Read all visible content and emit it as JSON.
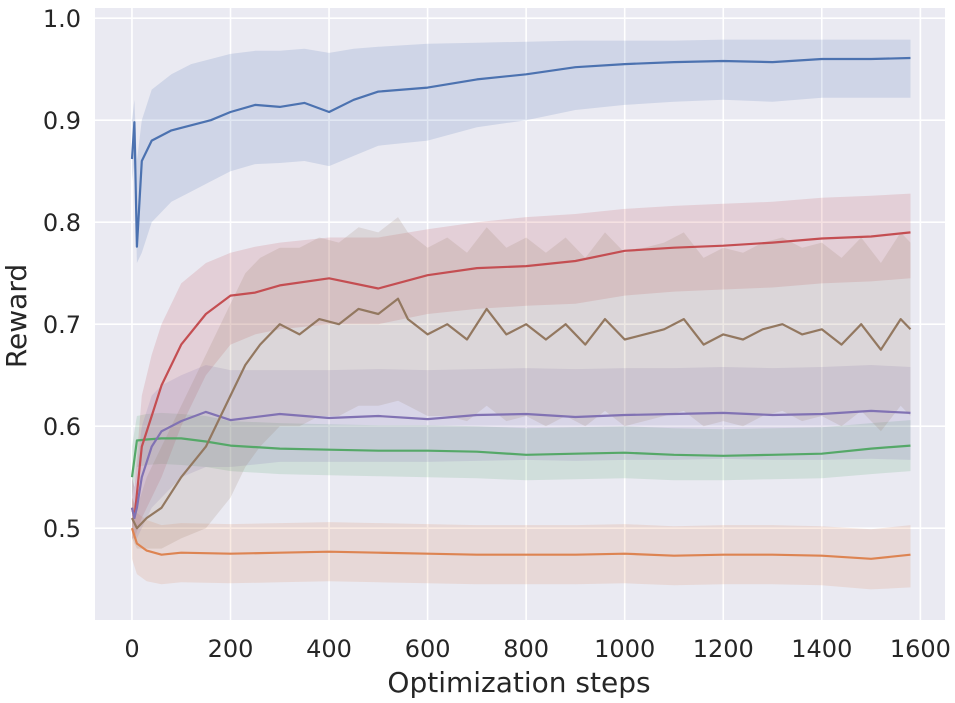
{
  "chart_data": {
    "type": "line",
    "title": "",
    "xlabel": "Optimization steps",
    "ylabel": "Reward",
    "xlim": [
      -75,
      1650
    ],
    "ylim": [
      0.41,
      1.01
    ],
    "xticks": [
      0,
      200,
      400,
      600,
      800,
      1000,
      1200,
      1400,
      1600
    ],
    "xtick_labels": [
      "0",
      "200",
      "400",
      "600",
      "800",
      "1000",
      "1200",
      "1400",
      "1600"
    ],
    "yticks": [
      0.5,
      0.6,
      0.7,
      0.8,
      0.9,
      1.0
    ],
    "ytick_labels": [
      "0.5",
      "0.6",
      "0.7",
      "0.8",
      "0.9",
      "1.0"
    ],
    "grid": true,
    "background": "#eaeaf2",
    "series": [
      {
        "color": "#4c72b0",
        "x": [
          0,
          5,
          10,
          20,
          40,
          80,
          120,
          160,
          200,
          250,
          300,
          350,
          400,
          450,
          500,
          600,
          700,
          800,
          900,
          1000,
          1100,
          1200,
          1300,
          1400,
          1500,
          1580
        ],
        "y": [
          0.862,
          0.898,
          0.776,
          0.86,
          0.88,
          0.89,
          0.895,
          0.9,
          0.908,
          0.915,
          0.913,
          0.917,
          0.908,
          0.92,
          0.928,
          0.932,
          0.94,
          0.945,
          0.952,
          0.955,
          0.957,
          0.958,
          0.957,
          0.96,
          0.96,
          0.961
        ],
        "lower": [
          0.84,
          0.86,
          0.76,
          0.77,
          0.8,
          0.82,
          0.83,
          0.84,
          0.85,
          0.857,
          0.858,
          0.86,
          0.855,
          0.865,
          0.875,
          0.88,
          0.893,
          0.9,
          0.91,
          0.915,
          0.918,
          0.92,
          0.918,
          0.922,
          0.922,
          0.922
        ],
        "upper": [
          0.9,
          0.92,
          0.86,
          0.9,
          0.93,
          0.945,
          0.955,
          0.96,
          0.965,
          0.968,
          0.968,
          0.97,
          0.966,
          0.97,
          0.972,
          0.975,
          0.976,
          0.977,
          0.978,
          0.978,
          0.978,
          0.979,
          0.979,
          0.979,
          0.979,
          0.979
        ]
      },
      {
        "color": "#dd8452",
        "x": [
          0,
          10,
          30,
          60,
          100,
          200,
          300,
          400,
          500,
          600,
          700,
          800,
          900,
          1000,
          1100,
          1200,
          1300,
          1400,
          1500,
          1580
        ],
        "y": [
          0.5,
          0.485,
          0.478,
          0.474,
          0.476,
          0.475,
          0.476,
          0.477,
          0.476,
          0.475,
          0.474,
          0.474,
          0.474,
          0.475,
          0.473,
          0.474,
          0.474,
          0.473,
          0.47,
          0.474
        ],
        "lower": [
          0.47,
          0.455,
          0.448,
          0.445,
          0.447,
          0.446,
          0.447,
          0.448,
          0.447,
          0.446,
          0.445,
          0.445,
          0.445,
          0.446,
          0.444,
          0.445,
          0.445,
          0.444,
          0.44,
          0.442
        ],
        "upper": [
          0.53,
          0.515,
          0.508,
          0.503,
          0.505,
          0.504,
          0.505,
          0.506,
          0.505,
          0.504,
          0.503,
          0.503,
          0.503,
          0.504,
          0.502,
          0.503,
          0.503,
          0.502,
          0.499,
          0.503
        ]
      },
      {
        "color": "#55a868",
        "x": [
          0,
          10,
          30,
          60,
          100,
          150,
          200,
          300,
          400,
          500,
          600,
          700,
          800,
          900,
          1000,
          1100,
          1200,
          1300,
          1400,
          1500,
          1580
        ],
        "y": [
          0.55,
          0.586,
          0.587,
          0.588,
          0.588,
          0.585,
          0.581,
          0.578,
          0.577,
          0.576,
          0.576,
          0.575,
          0.572,
          0.573,
          0.574,
          0.572,
          0.571,
          0.572,
          0.573,
          0.578,
          0.581
        ],
        "lower": [
          0.53,
          0.56,
          0.562,
          0.563,
          0.562,
          0.56,
          0.556,
          0.553,
          0.552,
          0.551,
          0.55,
          0.549,
          0.547,
          0.548,
          0.549,
          0.547,
          0.547,
          0.548,
          0.549,
          0.553,
          0.556
        ],
        "upper": [
          0.58,
          0.61,
          0.612,
          0.613,
          0.612,
          0.61,
          0.605,
          0.603,
          0.602,
          0.601,
          0.601,
          0.6,
          0.598,
          0.599,
          0.6,
          0.598,
          0.597,
          0.598,
          0.599,
          0.603,
          0.606
        ]
      },
      {
        "color": "#c44e52",
        "x": [
          0,
          5,
          20,
          40,
          60,
          100,
          150,
          200,
          250,
          300,
          400,
          500,
          600,
          700,
          800,
          900,
          1000,
          1100,
          1200,
          1300,
          1400,
          1500,
          1580
        ],
        "y": [
          0.52,
          0.51,
          0.58,
          0.61,
          0.64,
          0.68,
          0.71,
          0.728,
          0.731,
          0.738,
          0.745,
          0.735,
          0.748,
          0.755,
          0.757,
          0.762,
          0.772,
          0.775,
          0.777,
          0.78,
          0.784,
          0.786,
          0.79
        ],
        "lower": [
          0.49,
          0.49,
          0.51,
          0.53,
          0.55,
          0.6,
          0.65,
          0.68,
          0.69,
          0.695,
          0.7,
          0.7,
          0.71,
          0.715,
          0.718,
          0.72,
          0.728,
          0.732,
          0.734,
          0.736,
          0.74,
          0.742,
          0.745
        ],
        "upper": [
          0.55,
          0.54,
          0.63,
          0.67,
          0.7,
          0.74,
          0.76,
          0.77,
          0.776,
          0.78,
          0.785,
          0.785,
          0.793,
          0.8,
          0.805,
          0.808,
          0.813,
          0.816,
          0.818,
          0.82,
          0.824,
          0.826,
          0.828
        ]
      },
      {
        "color": "#8172b3",
        "x": [
          0,
          5,
          10,
          20,
          40,
          60,
          100,
          150,
          200,
          300,
          400,
          500,
          600,
          700,
          800,
          900,
          1000,
          1100,
          1200,
          1300,
          1400,
          1500,
          1580
        ],
        "y": [
          0.52,
          0.51,
          0.52,
          0.55,
          0.58,
          0.595,
          0.605,
          0.614,
          0.606,
          0.612,
          0.608,
          0.61,
          0.607,
          0.611,
          0.612,
          0.609,
          0.611,
          0.612,
          0.613,
          0.611,
          0.612,
          0.615,
          0.613
        ],
        "lower": [
          0.5,
          0.49,
          0.49,
          0.5,
          0.52,
          0.53,
          0.55,
          0.56,
          0.56,
          0.565,
          0.565,
          0.565,
          0.565,
          0.566,
          0.567,
          0.566,
          0.567,
          0.567,
          0.568,
          0.567,
          0.567,
          0.568,
          0.567
        ],
        "upper": [
          0.55,
          0.54,
          0.56,
          0.6,
          0.63,
          0.64,
          0.65,
          0.66,
          0.655,
          0.655,
          0.655,
          0.656,
          0.655,
          0.656,
          0.657,
          0.656,
          0.657,
          0.657,
          0.658,
          0.657,
          0.658,
          0.66,
          0.658
        ]
      },
      {
        "color": "#937860",
        "x": [
          0,
          10,
          30,
          60,
          100,
          150,
          200,
          230,
          260,
          300,
          340,
          380,
          420,
          460,
          500,
          540,
          560,
          600,
          640,
          680,
          720,
          760,
          800,
          840,
          880,
          920,
          960,
          1000,
          1040,
          1080,
          1120,
          1160,
          1200,
          1240,
          1280,
          1320,
          1360,
          1400,
          1440,
          1480,
          1520,
          1560,
          1580
        ],
        "y": [
          0.51,
          0.5,
          0.51,
          0.52,
          0.55,
          0.58,
          0.63,
          0.66,
          0.68,
          0.7,
          0.69,
          0.705,
          0.7,
          0.715,
          0.71,
          0.725,
          0.705,
          0.69,
          0.7,
          0.685,
          0.715,
          0.69,
          0.7,
          0.685,
          0.7,
          0.68,
          0.705,
          0.685,
          0.69,
          0.695,
          0.705,
          0.68,
          0.69,
          0.685,
          0.695,
          0.7,
          0.69,
          0.695,
          0.68,
          0.7,
          0.675,
          0.705,
          0.695
        ],
        "lower": [
          0.49,
          0.48,
          0.48,
          0.48,
          0.49,
          0.5,
          0.53,
          0.56,
          0.58,
          0.6,
          0.6,
          0.61,
          0.61,
          0.62,
          0.62,
          0.625,
          0.62,
          0.61,
          0.61,
          0.605,
          0.62,
          0.605,
          0.61,
          0.6,
          0.61,
          0.6,
          0.615,
          0.6,
          0.605,
          0.61,
          0.615,
          0.6,
          0.605,
          0.6,
          0.61,
          0.615,
          0.605,
          0.61,
          0.6,
          0.615,
          0.595,
          0.62,
          0.61
        ],
        "upper": [
          0.53,
          0.52,
          0.55,
          0.58,
          0.62,
          0.67,
          0.72,
          0.75,
          0.765,
          0.775,
          0.775,
          0.785,
          0.78,
          0.795,
          0.79,
          0.805,
          0.79,
          0.775,
          0.785,
          0.77,
          0.795,
          0.775,
          0.785,
          0.77,
          0.785,
          0.765,
          0.79,
          0.77,
          0.775,
          0.78,
          0.79,
          0.765,
          0.775,
          0.77,
          0.78,
          0.785,
          0.775,
          0.78,
          0.765,
          0.785,
          0.76,
          0.79,
          0.78
        ]
      }
    ]
  }
}
